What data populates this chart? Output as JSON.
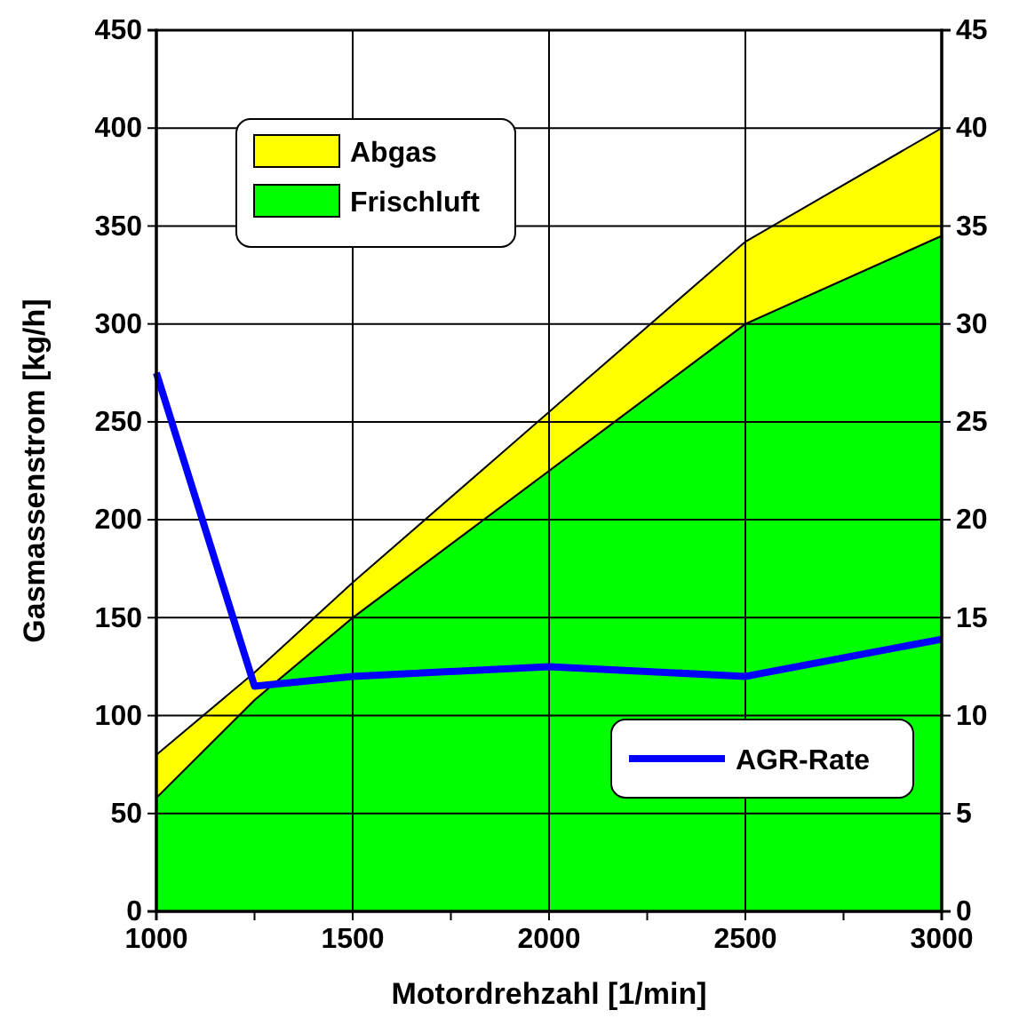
{
  "chart_data": {
    "type": "area",
    "stacked": true,
    "xlabel": "Motordrehzahl  [1/min]",
    "ylabel": "Gasmassenstrom  [kg/h]",
    "x": [
      1000,
      1250,
      1500,
      2000,
      2500,
      3000
    ],
    "series": [
      {
        "name": "Frischluft",
        "color": "#00ff00",
        "values": [
          58,
          108,
          150,
          225,
          300,
          345
        ]
      },
      {
        "name": "Abgas",
        "color": "#ffff00",
        "values": [
          22,
          14,
          18,
          30,
          42,
          55
        ]
      },
      {
        "name": "AGR-Rate",
        "type": "line",
        "axis": "y2",
        "color": "#0000ff",
        "values": [
          27.5,
          11.5,
          12,
          12.5,
          12,
          13.9
        ]
      }
    ],
    "xlim": [
      1000,
      3000
    ],
    "xticks": [
      1000,
      {
        "value": 1250,
        "label": null
      },
      1500,
      {
        "value": 1750,
        "label": null
      },
      2000,
      {
        "value": 2250,
        "label": null
      },
      2500,
      {
        "value": 2750,
        "label": null
      },
      3000
    ],
    "ylim": [
      0,
      450
    ],
    "yticks": [
      0,
      50,
      100,
      150,
      200,
      250,
      300,
      350,
      400,
      450
    ],
    "y2lim": [
      0,
      45
    ],
    "y2ticks": [
      0,
      5,
      10,
      15,
      20,
      25,
      30,
      35,
      40,
      45
    ],
    "grid": true,
    "legend": "top left",
    "marker": "none",
    "line_style": "solid"
  }
}
